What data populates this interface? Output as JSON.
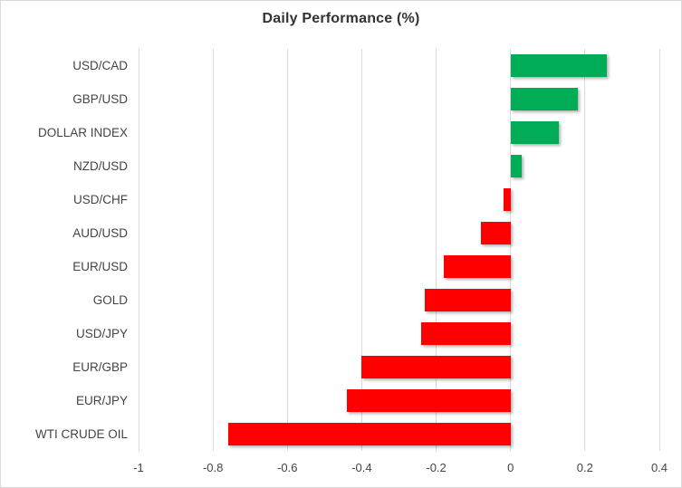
{
  "chart_data": {
    "type": "bar",
    "orientation": "horizontal",
    "title": "Daily Performance (%)",
    "categories": [
      "USD/CAD",
      "GBP/USD",
      "DOLLAR INDEX",
      "NZD/USD",
      "USD/CHF",
      "AUD/USD",
      "EUR/USD",
      "GOLD",
      "USD/JPY",
      "EUR/GBP",
      "EUR/JPY",
      "WTI CRUDE OIL"
    ],
    "values": [
      0.26,
      0.18,
      0.13,
      0.03,
      -0.02,
      -0.08,
      -0.18,
      -0.23,
      -0.24,
      -0.4,
      -0.44,
      -0.76
    ],
    "xlim": [
      -1,
      0.4
    ],
    "x_ticks": [
      -1,
      -0.8,
      -0.6,
      -0.4,
      -0.2,
      0,
      0.2,
      0.4
    ],
    "x_tick_labels": [
      "-1",
      "-0.8",
      "-0.6",
      "-0.4",
      "-0.2",
      "0",
      "0.2",
      "0.4"
    ],
    "grid": true,
    "legend": "none",
    "colors": {
      "positive": "#00AC55",
      "negative": "#FF0000",
      "gridline": "#D9D9D9",
      "frame_border": "#D9D9D9",
      "title_text": "#333333",
      "label_text": "#444444"
    }
  }
}
